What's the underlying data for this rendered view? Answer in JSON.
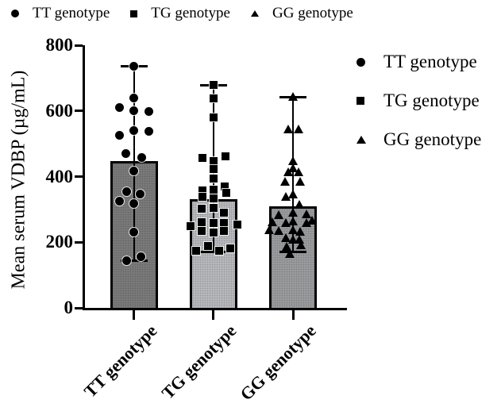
{
  "legend_top": {
    "items": [
      {
        "marker": "circle",
        "label": "TT genotype"
      },
      {
        "marker": "square",
        "label": "TG genotype"
      },
      {
        "marker": "triangle",
        "label": "GG genotype"
      }
    ]
  },
  "legend_right": {
    "items": [
      {
        "marker": "circle",
        "label": "TT genotype"
      },
      {
        "marker": "square",
        "label": "TG genotype"
      },
      {
        "marker": "triangle",
        "label": "GG genotype"
      }
    ]
  },
  "chart_data": {
    "type": "bar",
    "overlay": "scatter-with-error-bars",
    "title": "",
    "xlabel": "",
    "ylabel": "Mean serum VDBP (µg/mL)",
    "ylim": [
      0,
      800
    ],
    "yticks": [
      0,
      200,
      400,
      600,
      800
    ],
    "grid": false,
    "legend_position": "top and right",
    "categories": [
      "TT genotype",
      "TG genotype",
      "GG genotype"
    ],
    "axis_color": "#000000",
    "marker_color": "#000000",
    "series": [
      {
        "name": "TT genotype",
        "marker": "circle",
        "bar_color": "#7a7a7a",
        "mean": 442,
        "error_low": 143,
        "error_high": 737,
        "points": [
          [
            737,
            0
          ],
          [
            640,
            0
          ],
          [
            611,
            -18
          ],
          [
            601,
            0
          ],
          [
            599,
            19
          ],
          [
            540,
            0
          ],
          [
            537,
            19
          ],
          [
            525,
            -18
          ],
          [
            471,
            -10
          ],
          [
            457,
            10
          ],
          [
            418,
            0
          ],
          [
            353,
            -9
          ],
          [
            346,
            8
          ],
          [
            326,
            -18
          ],
          [
            317,
            0
          ],
          [
            232,
            0
          ],
          [
            157,
            9
          ],
          [
            145,
            -9
          ]
        ]
      },
      {
        "name": "TG genotype",
        "marker": "square",
        "bar_color": "#b7b8bb",
        "mean": 326,
        "error_low": 170,
        "error_high": 678,
        "points": [
          [
            678,
            0
          ],
          [
            637,
            0
          ],
          [
            579,
            0
          ],
          [
            462,
            15
          ],
          [
            457,
            -14
          ],
          [
            447,
            0
          ],
          [
            423,
            0
          ],
          [
            394,
            0
          ],
          [
            370,
            14
          ],
          [
            360,
            0
          ],
          [
            357,
            -14
          ],
          [
            350,
            16
          ],
          [
            338,
            -14
          ],
          [
            333,
            0
          ],
          [
            304,
            0
          ],
          [
            302,
            -15
          ],
          [
            289,
            13
          ],
          [
            260,
            -15
          ],
          [
            258,
            0
          ],
          [
            258,
            13
          ],
          [
            248,
            -29
          ],
          [
            253,
            30
          ],
          [
            234,
            -15
          ],
          [
            234,
            13
          ],
          [
            229,
            0
          ],
          [
            188,
            -7
          ],
          [
            181,
            21
          ],
          [
            173,
            -22
          ],
          [
            173,
            7
          ]
        ]
      },
      {
        "name": "GG genotype",
        "marker": "triangle",
        "bar_color": "#9a9b9e",
        "mean": 305,
        "error_low": 170,
        "error_high": 642,
        "points": [
          [
            642,
            0
          ],
          [
            545,
            -6
          ],
          [
            545,
            7
          ],
          [
            447,
            0
          ],
          [
            426,
            0
          ],
          [
            413,
            -6
          ],
          [
            413,
            7
          ],
          [
            384,
            -10
          ],
          [
            384,
            9
          ],
          [
            345,
            0
          ],
          [
            338,
            -9
          ],
          [
            314,
            8
          ],
          [
            290,
            0
          ],
          [
            285,
            17
          ],
          [
            283,
            -18
          ],
          [
            266,
            24
          ],
          [
            264,
            0
          ],
          [
            261,
            -26
          ],
          [
            259,
            -9
          ],
          [
            259,
            17
          ],
          [
            237,
            -30
          ],
          [
            237,
            0
          ],
          [
            234,
            -18
          ],
          [
            232,
            9
          ],
          [
            213,
            -9
          ],
          [
            208,
            0
          ],
          [
            208,
            8
          ],
          [
            191,
            10
          ],
          [
            186,
            -8
          ],
          [
            164,
            -4
          ]
        ]
      }
    ]
  }
}
